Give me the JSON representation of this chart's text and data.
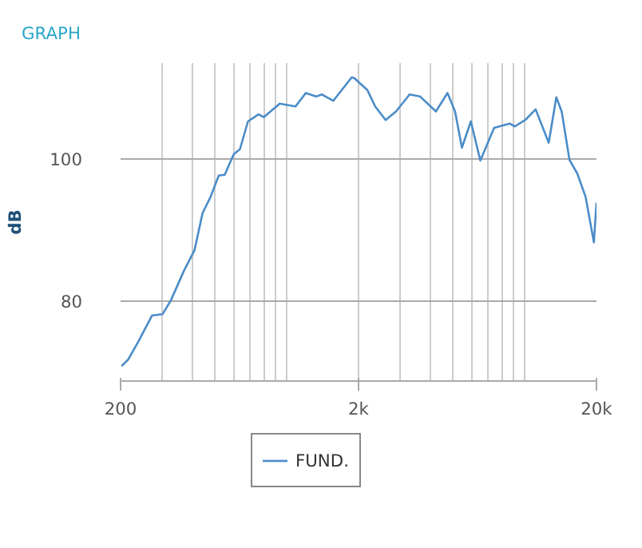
{
  "chart_data": {
    "type": "line",
    "title": "GRAPH",
    "ylabel": "dB",
    "x": [
      202,
      215,
      238,
      271,
      300,
      325,
      368,
      409,
      442,
      478,
      517,
      548,
      598,
      635,
      686,
      760,
      799,
      933,
      1087,
      1201,
      1328,
      1400,
      1566,
      1873,
      1918,
      2180,
      2350,
      2600,
      2875,
      3280,
      3630,
      4230,
      4730,
      5090,
      5440,
      5930,
      6500,
      7430,
      8630,
      9080,
      10040,
      11100,
      12600,
      13560,
      14280,
      15400,
      16600,
      18000,
      19500,
      20000
    ],
    "series": [
      {
        "name": "FUND.",
        "color": "#4a8cc8",
        "values": [
          70.9,
          71.8,
          74.4,
          78.0,
          78.2,
          80.1,
          84.2,
          87.2,
          92.4,
          94.7,
          97.7,
          97.8,
          100.7,
          101.4,
          105.3,
          106.3,
          105.9,
          107.8,
          107.4,
          109.3,
          108.8,
          109.1,
          108.2,
          111.5,
          111.4,
          109.7,
          107.4,
          105.5,
          106.7,
          109.1,
          108.8,
          106.7,
          109.3,
          106.7,
          101.6,
          105.3,
          99.8,
          104.4,
          105.0,
          104.6,
          105.5,
          107.0,
          102.3,
          108.7,
          106.7,
          99.9,
          98.0,
          94.7,
          88.3,
          93.9
        ]
      }
    ],
    "log": "x",
    "xlim": [
      200,
      20000
    ],
    "xticks": [
      {
        "value": 200,
        "label": "200"
      },
      {
        "value": 2000,
        "label": "2k"
      },
      {
        "value": 20000,
        "label": "20k"
      }
    ],
    "ylim": [
      68.8,
      113.5
    ],
    "yticks": [
      80,
      100
    ],
    "grid": true,
    "legend": "bottom",
    "marker": "none",
    "line_style": "solid"
  }
}
